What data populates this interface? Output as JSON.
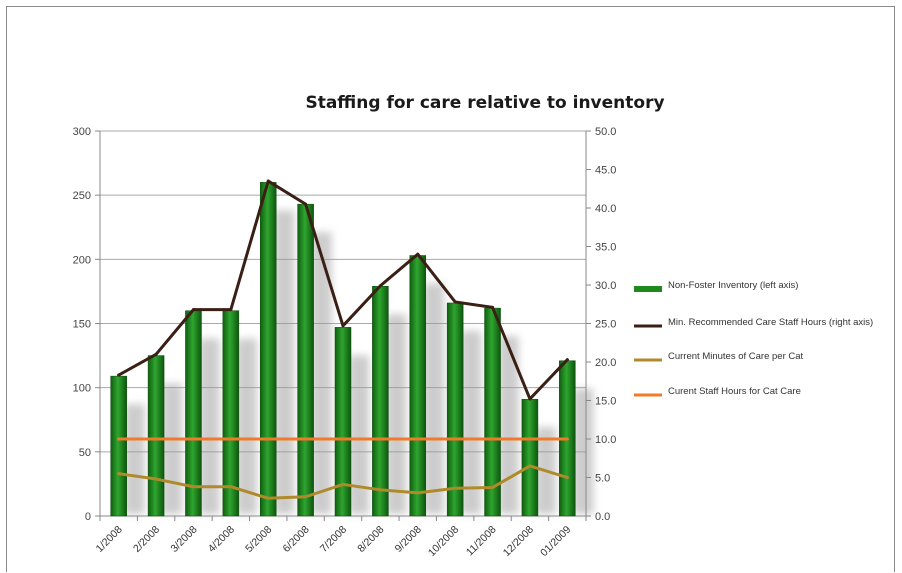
{
  "chart_data": {
    "type": "bar",
    "title": "Staffing for care relative to inventory",
    "categories": [
      "1/2008",
      "2/2008",
      "3/2008",
      "4/2008",
      "5/2008",
      "6/2008",
      "7/2008",
      "8/2008",
      "9/2008",
      "10/2008",
      "11/2008",
      "12/2008",
      "01/2009"
    ],
    "left_axis": {
      "min": 0,
      "max": 300,
      "ticks": [
        "0",
        "50",
        "100",
        "150",
        "200",
        "250",
        "300"
      ]
    },
    "right_axis": {
      "min": 0,
      "max": 50,
      "ticks": [
        "0.0",
        "5.0",
        "10.0",
        "15.0",
        "20.0",
        "25.0",
        "30.0",
        "35.0",
        "40.0",
        "45.0",
        "50.0"
      ]
    },
    "grid": true,
    "legend_position": "right",
    "series": [
      {
        "name": "Non-Foster Inventory (left axis)",
        "type": "bar",
        "axis": "left",
        "color": "#1e8a1e",
        "values": [
          109,
          125,
          160,
          160,
          260,
          243,
          147,
          179,
          203,
          166,
          162,
          91,
          121
        ]
      },
      {
        "name": "Min. Recommended Care Staff Hours (right axis)",
        "type": "line",
        "axis": "right",
        "color": "#3a1f14",
        "values": [
          18.3,
          21.0,
          26.8,
          26.8,
          43.5,
          40.5,
          24.7,
          29.9,
          34.0,
          27.8,
          27.1,
          15.2,
          20.3
        ]
      },
      {
        "name": "Current Minutes of Care per Cat",
        "type": "line",
        "axis": "right",
        "color": "#b08a2a",
        "values": [
          5.5,
          4.8,
          3.8,
          3.8,
          2.3,
          2.5,
          4.1,
          3.4,
          3.0,
          3.6,
          3.7,
          6.5,
          5.0
        ]
      },
      {
        "name": "Curent Staff Hours for Cat Care",
        "type": "line",
        "axis": "right",
        "color": "#f07a2a",
        "values": [
          10.0,
          10.0,
          10.0,
          10.0,
          10.0,
          10.0,
          10.0,
          10.0,
          10.0,
          10.0,
          10.0,
          10.0,
          10.0
        ]
      }
    ]
  }
}
